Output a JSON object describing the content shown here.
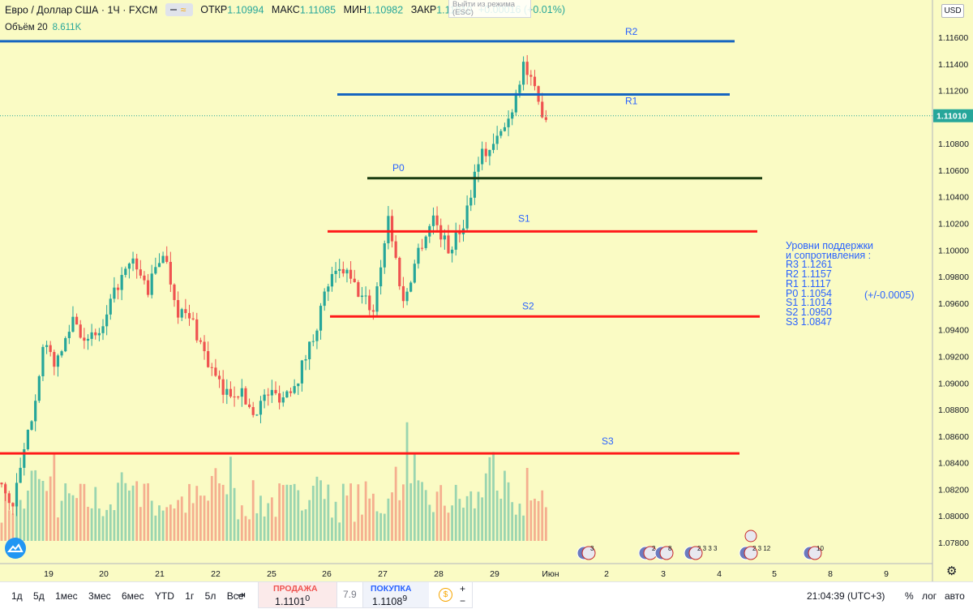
{
  "header": {
    "symbol": "Евро / Доллар США · 1Ч · FXCM",
    "open_label": "ОТКР",
    "open": "1.10994",
    "high_label": "МАКС",
    "high": "1.11085",
    "low_label": "МИН",
    "low": "1.10982",
    "close_label": "ЗАКР",
    "close": "1.11010",
    "change": "+0.00016 (+0.01%)",
    "volume_label": "Объём 20",
    "volume_value": "8.611K",
    "tooltip_line1": "Выйти из режима",
    "tooltip_line2": "(ESC)",
    "currency": "USD"
  },
  "levels_note": {
    "title": "Уровни поддержки\nи сопротивления :",
    "lines": [
      "R3 1.1261",
      "R2 1.1157",
      "R1 1.1117",
      "P0 1.1054",
      "S1 1.1014",
      "S2 1.0950",
      "S3 1.0847"
    ],
    "tolerance": "(+/-0.0005)"
  },
  "bottom_bar": {
    "ranges": [
      "1д",
      "5д",
      "1мес",
      "3мес",
      "6мес",
      "YTD",
      "1г",
      "5л",
      "Все"
    ],
    "sell_label": "ПРОДАЖА",
    "sell_price": "1.1101",
    "sell_sup": "0",
    "spread": "7.9",
    "buy_label": "ПОКУПКА",
    "buy_price": "1.1108",
    "buy_sup": "9",
    "plus": "+",
    "minus": "−",
    "time": "21:04:39 (UTC+3)",
    "percent": "%",
    "log": "лог",
    "auto": "авто"
  },
  "colors": {
    "background": "#fafbc4",
    "up": "#26a69a",
    "down": "#ef5350",
    "resistance": "#1565c0",
    "support": "#ff1a1a",
    "pivot": "#1b3d12",
    "label": "#2962ff"
  },
  "chart_data": {
    "type": "candlestick",
    "symbol": "Евро / Доллар США",
    "interval": "1Ч",
    "ylim": [
      1.0765,
      1.1175
    ],
    "y_ticks": [
      "1.11600",
      "1.11400",
      "1.11200",
      "1.11000",
      "1.10800",
      "1.10600",
      "1.10400",
      "1.10200",
      "1.10000",
      "1.09800",
      "1.09600",
      "1.09400",
      "1.09200",
      "1.09000",
      "1.08800",
      "1.08600",
      "1.08400",
      "1.08200",
      "1.08000",
      "1.07800"
    ],
    "x_ticks": [
      "19",
      "20",
      "21",
      "22",
      "25",
      "26",
      "27",
      "28",
      "29",
      "Июн",
      "2",
      "3",
      "4",
      "5",
      "8",
      "9"
    ],
    "current_price": "1.11010",
    "price_path": [
      [
        0,
        1.0825
      ],
      [
        4,
        1.0808
      ],
      [
        8,
        1.086
      ],
      [
        12,
        1.0925
      ],
      [
        16,
        1.0915
      ],
      [
        20,
        1.095
      ],
      [
        24,
        1.093
      ],
      [
        28,
        1.094
      ],
      [
        32,
        1.0975
      ],
      [
        36,
        1.099
      ],
      [
        40,
        1.097
      ],
      [
        44,
        1.1
      ],
      [
        48,
        1.0955
      ],
      [
        52,
        1.0945
      ],
      [
        56,
        1.0915
      ],
      [
        60,
        1.0892
      ],
      [
        64,
        1.0895
      ],
      [
        68,
        1.0878
      ],
      [
        72,
        1.0892
      ],
      [
        76,
        1.089
      ],
      [
        80,
        1.0905
      ],
      [
        84,
        1.0935
      ],
      [
        88,
        1.0975
      ],
      [
        92,
        1.0985
      ],
      [
        96,
        1.0968
      ],
      [
        100,
        1.0955
      ],
      [
        104,
        1.1025
      ],
      [
        108,
        1.096
      ],
      [
        112,
        1.1
      ],
      [
        116,
        1.1025
      ],
      [
        120,
        1.1
      ],
      [
        124,
        1.102
      ],
      [
        128,
        1.107
      ],
      [
        132,
        1.1078
      ],
      [
        136,
        1.1098
      ],
      [
        140,
        1.114
      ],
      [
        144,
        1.111
      ],
      [
        146,
        1.1101
      ]
    ],
    "volume_ylim": [
      0,
      20000
    ],
    "levels": [
      {
        "name": "R2",
        "value": 1.1157
      },
      {
        "name": "R1",
        "value": 1.1117
      },
      {
        "name": "P0",
        "value": 1.1054
      },
      {
        "name": "S1",
        "value": 1.1014
      },
      {
        "name": "S2",
        "value": 1.095
      },
      {
        "name": "S3",
        "value": 1.0847
      }
    ],
    "events": [
      {
        "x_tick": "Июн",
        "count": "3"
      },
      {
        "x_tick": "2",
        "count": "2"
      },
      {
        "x_tick": "3",
        "count": "8"
      },
      {
        "x_tick": "4",
        "count": "2 3 3 3"
      },
      {
        "x_tick": "5",
        "count": "2 3 12"
      },
      {
        "x_tick": "8",
        "count": "10"
      }
    ]
  }
}
